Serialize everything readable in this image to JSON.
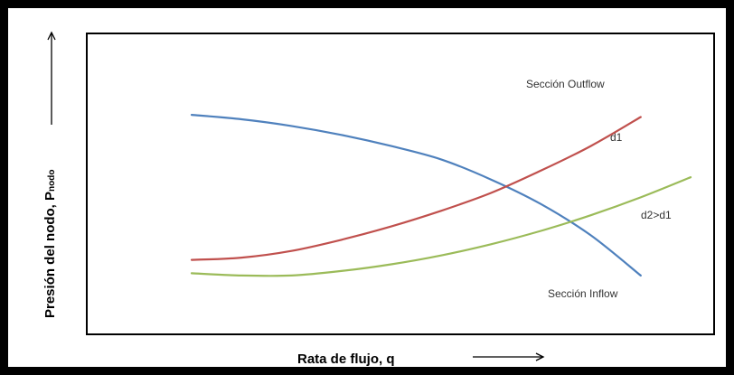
{
  "chart_data": {
    "type": "line",
    "title": "",
    "xlabel": "Rata de flujo, q",
    "ylabel": "Presión del nodo, P",
    "ylabel_subscript": "nodo",
    "xlim": [
      0,
      100
    ],
    "ylim": [
      0,
      100
    ],
    "grid": false,
    "legend": "none",
    "series": [
      {
        "key": "outflow",
        "color": "#4f81bd",
        "x": [
          0,
          10,
          20,
          30,
          40,
          50,
          60,
          70,
          80,
          90
        ],
        "y": [
          85,
          83,
          80,
          76,
          71,
          65,
          56,
          45,
          31,
          13
        ]
      },
      {
        "key": "inflow_d1",
        "color": "#c0504d",
        "x": [
          0,
          10,
          20,
          30,
          40,
          50,
          60,
          70,
          80,
          90
        ],
        "y": [
          20,
          21,
          24,
          29,
          35,
          42,
          50,
          60,
          71,
          84
        ]
      },
      {
        "key": "inflow_d2",
        "color": "#9bbb59",
        "x": [
          0,
          10,
          20,
          30,
          40,
          50,
          60,
          70,
          80,
          90,
          100
        ],
        "y": [
          14,
          13,
          13,
          15,
          18,
          22,
          27,
          33,
          40,
          48,
          57
        ]
      }
    ],
    "annotations": [
      {
        "key": "outflow_label",
        "text": "Sección Outflow"
      },
      {
        "key": "d1_label",
        "text": "d1"
      },
      {
        "key": "d2_label",
        "text": "d2>d1"
      },
      {
        "key": "inflow_label",
        "text": "Sección Inflow"
      }
    ]
  }
}
